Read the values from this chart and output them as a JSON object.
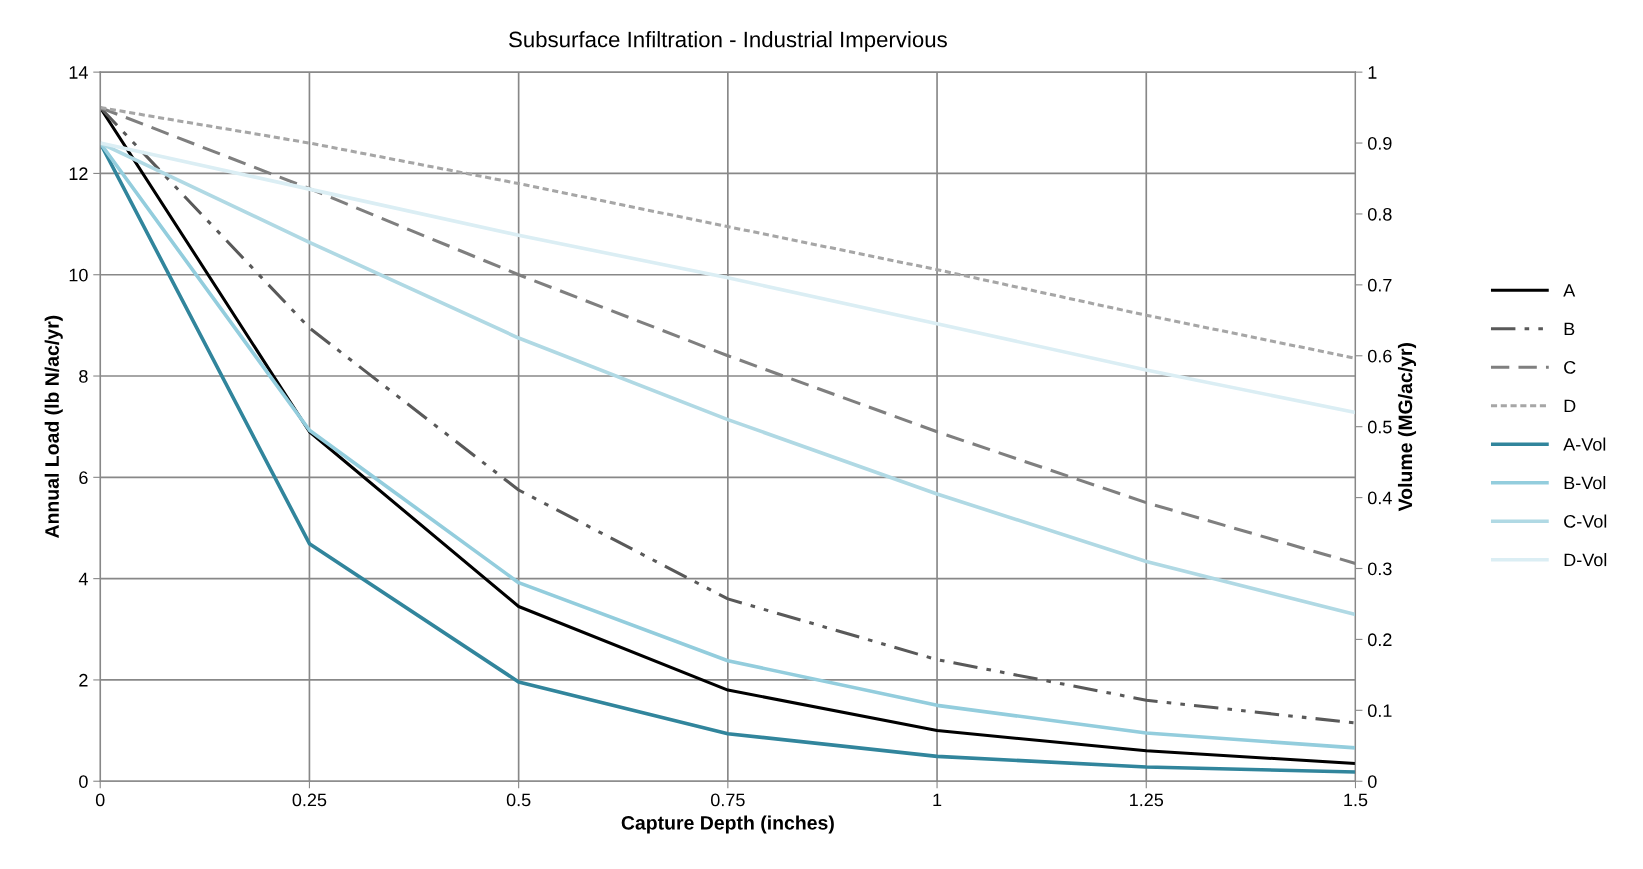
{
  "chart_data": {
    "type": "line",
    "title": "Subsurface Infiltration - Industrial Impervious",
    "xlabel": "Capture Depth (inches)",
    "ylabel": "Annual Load (lb N/ac/yr)",
    "y2label": "Volume (MG/ac/yr)",
    "x": [
      0,
      0.25,
      0.5,
      0.75,
      1,
      1.25,
      1.5
    ],
    "series": [
      {
        "name": "A",
        "color": "#000000",
        "line_style": "solid",
        "values": [
          13.3,
          6.9,
          3.45,
          1.8,
          1.0,
          0.6,
          0.35
        ]
      },
      {
        "name": "B",
        "color": "#595959",
        "line_style": "dashdot",
        "values": [
          13.3,
          8.95,
          5.75,
          3.6,
          2.4,
          1.6,
          1.15
        ]
      },
      {
        "name": "C",
        "color": "#7f7f7f",
        "line_style": "dashed",
        "values": [
          13.3,
          11.7,
          10.0,
          8.4,
          6.9,
          5.5,
          4.3
        ]
      },
      {
        "name": "D",
        "color": "#a6a6a6",
        "line_style": "dotted",
        "values": [
          13.3,
          12.6,
          11.8,
          10.95,
          10.1,
          9.2,
          8.35
        ]
      },
      {
        "name": "A-Vol",
        "color": "#31859c",
        "line_style": "solid",
        "axis": "y2",
        "values": [
          0.9,
          0.335,
          0.14,
          0.067,
          0.035,
          0.02,
          0.013
        ]
      },
      {
        "name": "B-Vol",
        "color": "#93cddd",
        "line_style": "solid",
        "axis": "y2",
        "values": [
          0.9,
          0.495,
          0.28,
          0.17,
          0.107,
          0.068,
          0.047
        ]
      },
      {
        "name": "C-Vol",
        "color": "#b0d9e4",
        "line_style": "solid",
        "axis": "y2",
        "values": [
          0.9,
          0.76,
          0.625,
          0.51,
          0.405,
          0.31,
          0.235
        ]
      },
      {
        "name": "D-Vol",
        "color": "#dbeef4",
        "line_style": "solid",
        "axis": "y2",
        "values": [
          0.9,
          0.835,
          0.77,
          0.71,
          0.645,
          0.58,
          0.52
        ]
      }
    ],
    "xlim": [
      0,
      1.5
    ],
    "xticks": [
      0,
      0.25,
      0.5,
      0.75,
      1,
      1.25,
      1.5
    ],
    "ylim": [
      0,
      14
    ],
    "yticks": [
      0,
      2,
      4,
      6,
      8,
      10,
      12,
      14
    ],
    "y2lim": [
      0,
      1
    ],
    "y2ticks": [
      0,
      0.1,
      0.2,
      0.3,
      0.4,
      0.5,
      0.6,
      0.7,
      0.8,
      0.9,
      1
    ],
    "grid": true,
    "legend": "right",
    "marker": "none"
  }
}
